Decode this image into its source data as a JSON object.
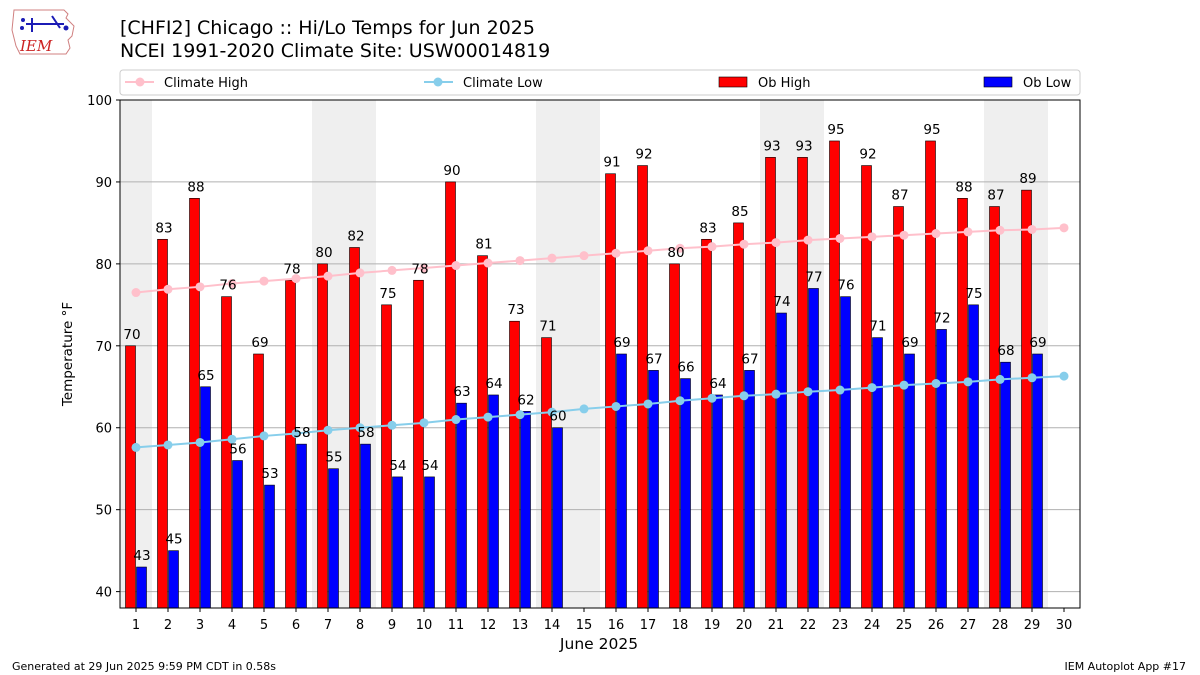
{
  "header": {
    "title_line1": "[CHFI2] Chicago :: Hi/Lo Temps for Jun 2025",
    "title_line2": "NCEI 1991-2020 Climate Site: USW00014819",
    "logo_text": "IEM"
  },
  "footer": {
    "generated": "Generated at 29 Jun 2025 9:59 PM CDT in 0.58s",
    "app": "IEM Autoplot App #17"
  },
  "chart_data": {
    "type": "bar",
    "title": "[CHFI2] Chicago :: Hi/Lo Temps for Jun 2025",
    "subtitle": "NCEI 1991-2020 Climate Site: USW00014819",
    "xlabel": "June 2025",
    "ylabel": "Temperature °F",
    "ylim": [
      38,
      100
    ],
    "yticks": [
      40,
      50,
      60,
      70,
      80,
      90,
      100
    ],
    "grid": "horizontal",
    "legend_position": "top",
    "categories": [
      "1",
      "2",
      "3",
      "4",
      "5",
      "6",
      "7",
      "8",
      "9",
      "10",
      "11",
      "12",
      "13",
      "14",
      "15",
      "16",
      "17",
      "18",
      "19",
      "20",
      "21",
      "22",
      "23",
      "24",
      "25",
      "26",
      "27",
      "28",
      "29",
      "30"
    ],
    "weekend_shaded_days": [
      1,
      7,
      8,
      14,
      15,
      21,
      22,
      28,
      29
    ],
    "series": [
      {
        "name": "Climate High",
        "kind": "line",
        "color": "#ffc0cb",
        "values": [
          76.5,
          76.9,
          77.2,
          77.6,
          77.9,
          78.2,
          78.5,
          78.9,
          79.2,
          79.5,
          79.8,
          80.1,
          80.4,
          80.7,
          81.0,
          81.3,
          81.6,
          81.9,
          82.1,
          82.4,
          82.6,
          82.9,
          83.1,
          83.3,
          83.5,
          83.7,
          83.9,
          84.1,
          84.2,
          84.4
        ]
      },
      {
        "name": "Climate Low",
        "kind": "line",
        "color": "#87ceeb",
        "values": [
          57.6,
          57.9,
          58.2,
          58.6,
          59.0,
          59.3,
          59.7,
          60.0,
          60.3,
          60.6,
          61.0,
          61.3,
          61.6,
          61.9,
          62.3,
          62.6,
          62.9,
          63.3,
          63.6,
          63.9,
          64.1,
          64.4,
          64.6,
          64.9,
          65.2,
          65.4,
          65.6,
          65.9,
          66.1,
          66.3
        ]
      },
      {
        "name": "Ob High",
        "kind": "bar",
        "color": "#ff0000",
        "values": [
          70,
          83,
          88,
          76,
          69,
          78,
          80,
          82,
          75,
          78,
          90,
          81,
          73,
          71,
          null,
          91,
          92,
          80,
          83,
          85,
          93,
          93,
          95,
          92,
          87,
          95,
          88,
          87,
          89,
          null
        ]
      },
      {
        "name": "Ob Low",
        "kind": "bar",
        "color": "#0000ff",
        "values": [
          43,
          45,
          65,
          56,
          53,
          58,
          55,
          58,
          54,
          54,
          63,
          64,
          62,
          60,
          null,
          69,
          67,
          66,
          64,
          67,
          74,
          77,
          76,
          71,
          69,
          72,
          75,
          68,
          69,
          null
        ]
      }
    ]
  }
}
